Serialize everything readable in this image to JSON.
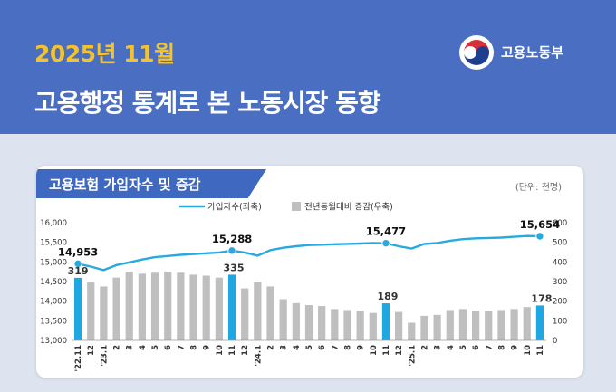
{
  "header": {
    "date": "2025년 11월",
    "title": "고용행정 통계로 본 노동시장 동향",
    "org_name": "고용노동부"
  },
  "section": {
    "title": "고용보험 가입자수 및 증감",
    "unit": "(단위: 천명)"
  },
  "colors": {
    "header_bg": "#4a6fc2",
    "date_accent": "#f2c230",
    "line": "#29a9e0",
    "bar_gray": "#bfbfbf",
    "bar_highlight": "#1ea7e1"
  },
  "chart_data": {
    "type": "bar",
    "legend": [
      "가입자수(좌축)",
      "전년동월대비 증감(우축)"
    ],
    "categories": [
      "'22.11",
      "12",
      "'23.1",
      "2",
      "3",
      "4",
      "5",
      "6",
      "7",
      "8",
      "9",
      "10",
      "11",
      "12",
      "'24.1",
      "2",
      "3",
      "4",
      "5",
      "6",
      "7",
      "8",
      "9",
      "10",
      "11",
      "12",
      "'25.1",
      "2",
      "3",
      "4",
      "5",
      "6",
      "7",
      "8",
      "9",
      "10",
      "11"
    ],
    "series": [
      {
        "name": "가입자수(좌축)",
        "type": "line",
        "axis": "left",
        "values": [
          14953,
          14880,
          14790,
          14920,
          14990,
          15060,
          15120,
          15150,
          15180,
          15200,
          15220,
          15240,
          15288,
          15240,
          15160,
          15300,
          15360,
          15400,
          15430,
          15440,
          15450,
          15460,
          15470,
          15480,
          15477,
          15400,
          15340,
          15460,
          15480,
          15540,
          15580,
          15600,
          15610,
          15620,
          15640,
          15660,
          15654
        ]
      },
      {
        "name": "전년동월대비 증감(우축)",
        "type": "bar",
        "axis": "right",
        "values": [
          319,
          295,
          275,
          320,
          350,
          340,
          345,
          350,
          345,
          335,
          330,
          320,
          335,
          265,
          300,
          275,
          210,
          190,
          180,
          175,
          160,
          155,
          150,
          140,
          189,
          145,
          90,
          125,
          130,
          155,
          160,
          150,
          150,
          155,
          160,
          170,
          178
        ],
        "highlight_indices": [
          0,
          12,
          24,
          36
        ]
      }
    ],
    "labels": [
      {
        "index": 0,
        "line": "14,953",
        "bar": "319"
      },
      {
        "index": 12,
        "line": "15,288",
        "bar": "335"
      },
      {
        "index": 24,
        "line": "15,477",
        "bar": "189"
      },
      {
        "index": 36,
        "line": "15,654",
        "bar": "178"
      }
    ],
    "y_left": {
      "min": 13000,
      "max": 16000,
      "ticks": [
        "13,000",
        "13,500",
        "14,000",
        "14,500",
        "15,000",
        "15,500",
        "16,000"
      ]
    },
    "y_right": {
      "min": 0,
      "max": 600,
      "ticks": [
        "0",
        "100",
        "200",
        "300",
        "400",
        "500",
        "600"
      ]
    }
  }
}
